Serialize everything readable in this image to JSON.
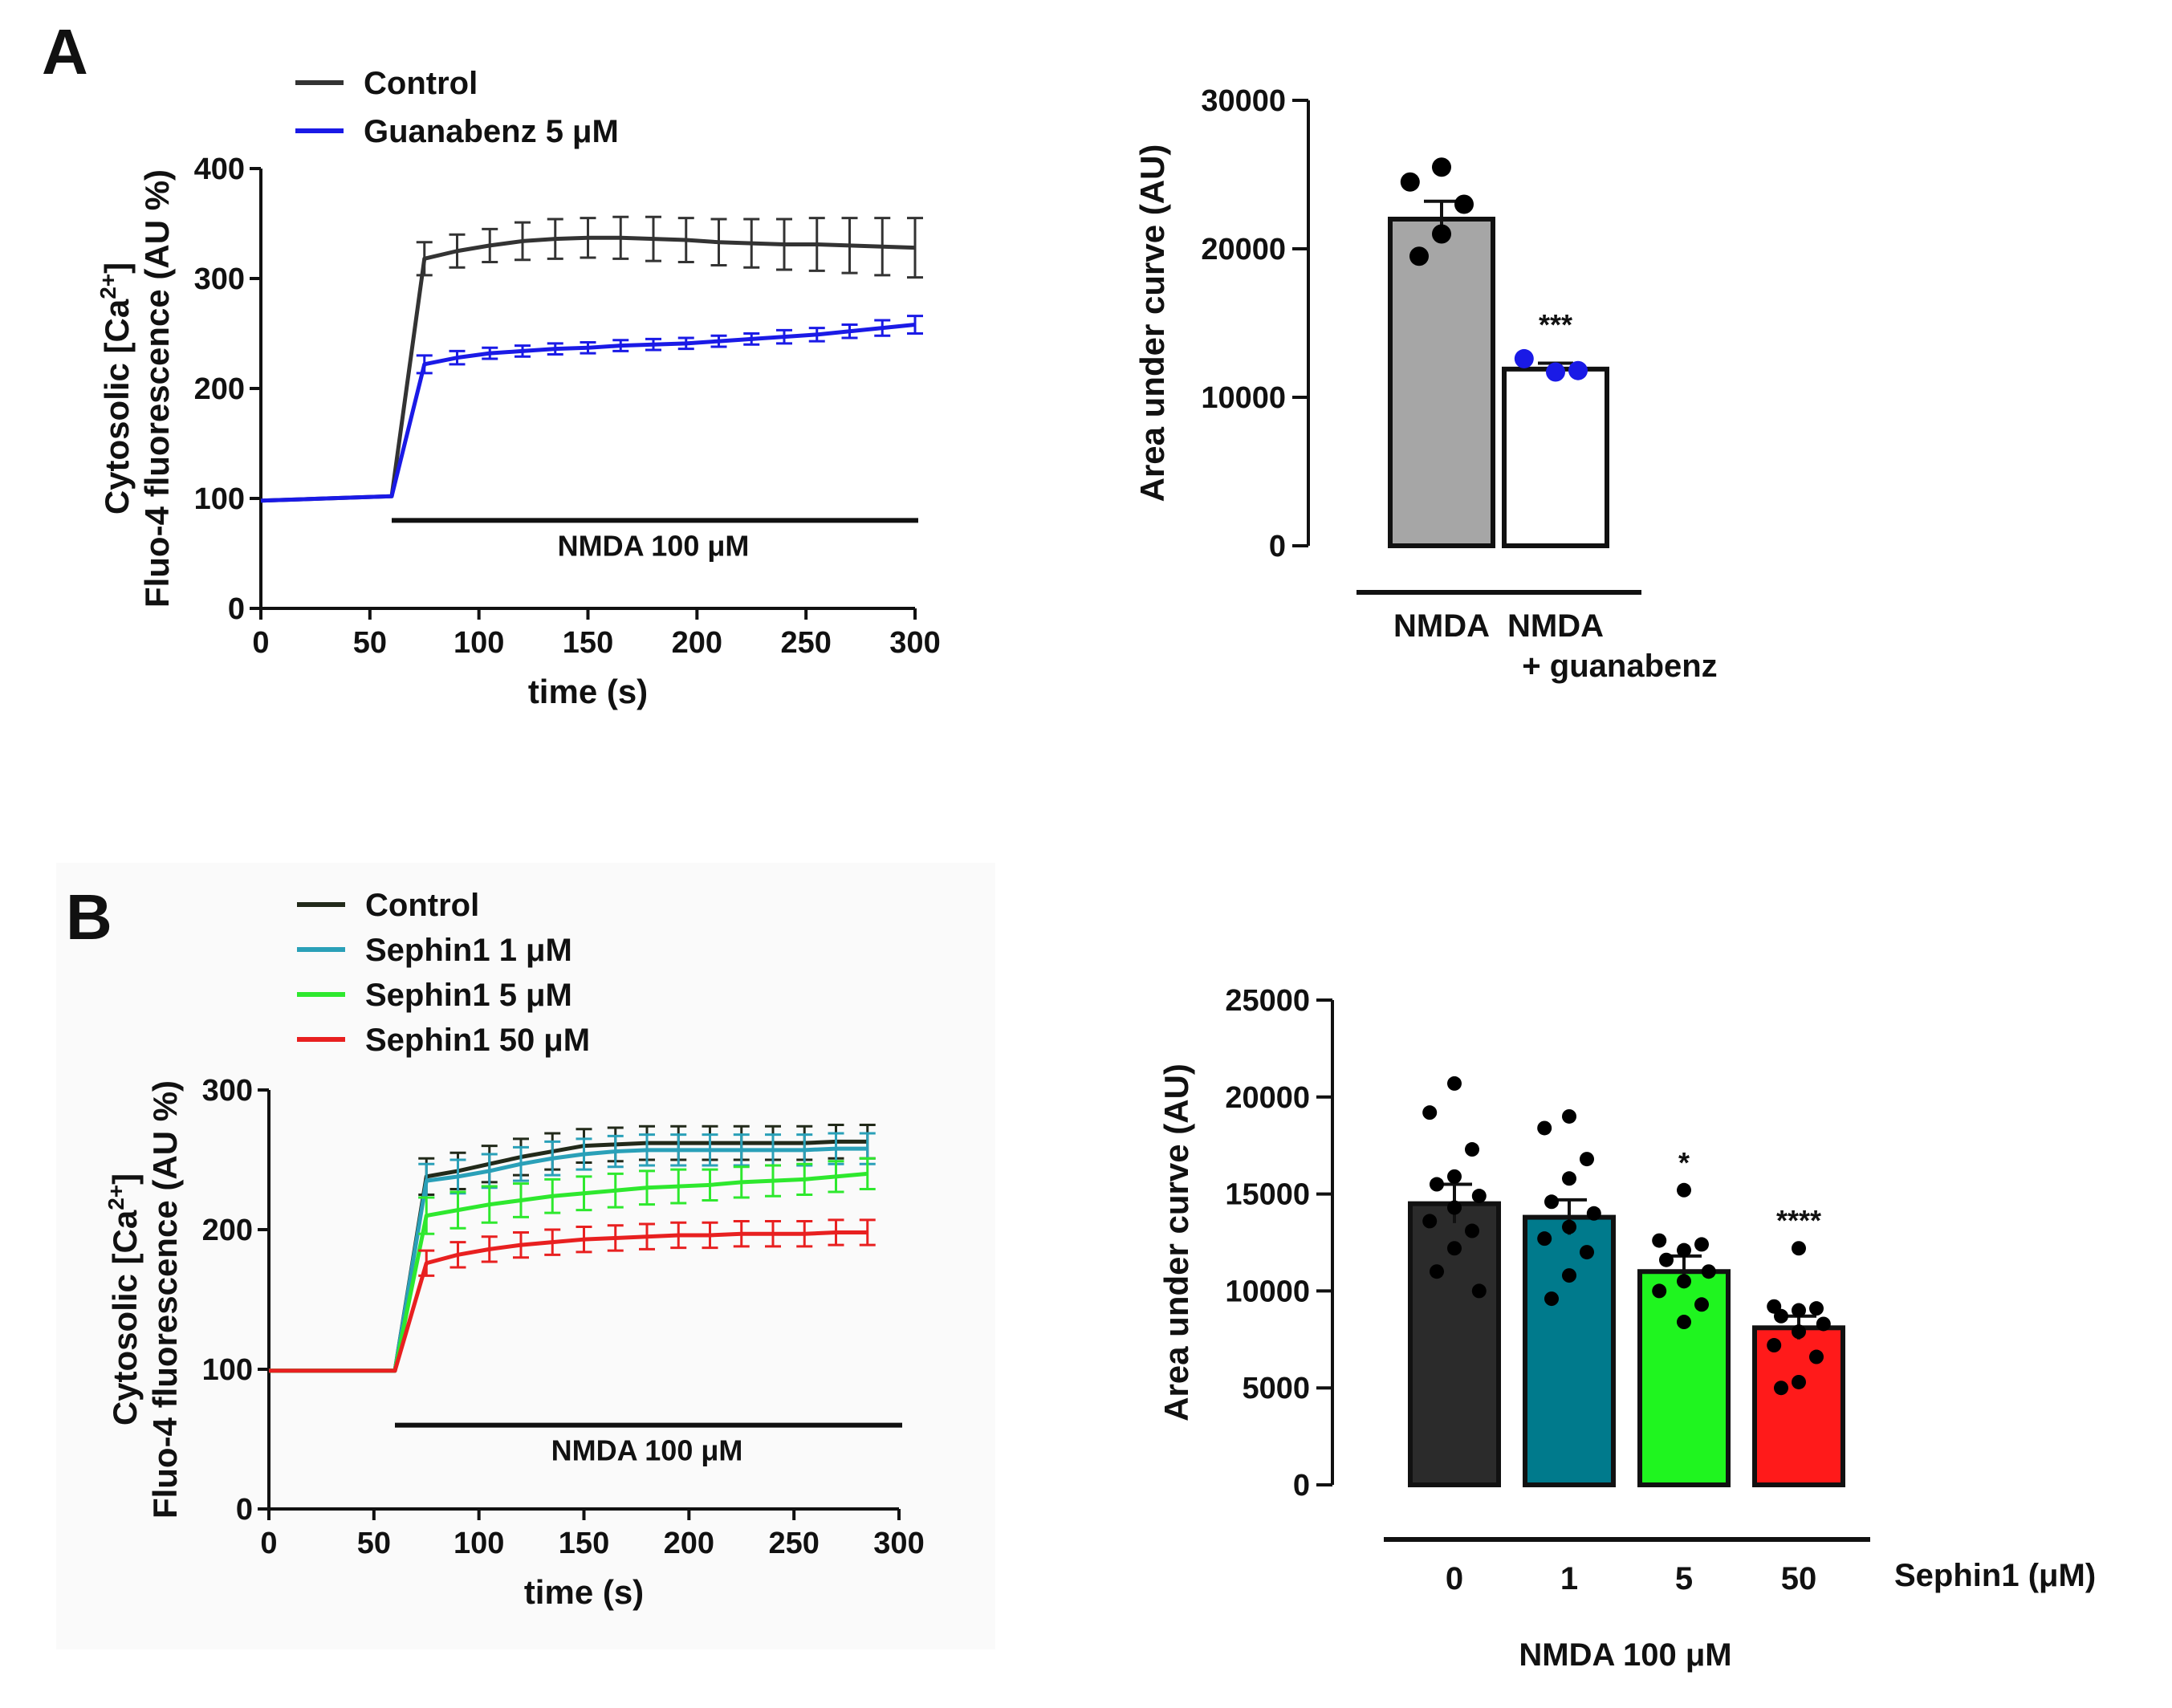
{
  "panel_a": {
    "letter": "A"
  },
  "panel_b": {
    "letter": "B"
  },
  "chart_data": [
    {
      "id": "a-line",
      "type": "line",
      "title": "",
      "xlabel": "time (s)",
      "ylabel": "Cytosolic [Ca2+]",
      "ylabel_line1_main": "Cytosolic [Ca",
      "ylabel_line1_sup": "2+",
      "ylabel_line1_end": "]",
      "ylabel_line2": "Fluo-4 fluorescence (AU %)",
      "xlim": [
        0,
        300
      ],
      "ylim": [
        0,
        400
      ],
      "xticks": [
        "0",
        "50",
        "100",
        "150",
        "200",
        "250",
        "300"
      ],
      "yticks": [
        "0",
        "100",
        "200",
        "300",
        "400"
      ],
      "annotation": "NMDA 100 μM",
      "annotation_x_range": [
        60,
        300
      ],
      "annotation_y": 80,
      "legend_position": "top-left",
      "series": [
        {
          "name": "Control",
          "color": "#333333",
          "x": [
            0,
            30,
            60,
            75,
            90,
            105,
            120,
            135,
            150,
            165,
            180,
            195,
            210,
            225,
            240,
            255,
            270,
            285,
            300
          ],
          "y": [
            98,
            100,
            102,
            318,
            325,
            330,
            334,
            336,
            337,
            337,
            336,
            335,
            333,
            332,
            331,
            331,
            330,
            329,
            328
          ],
          "err": [
            2,
            2,
            2,
            15,
            15,
            15,
            17,
            18,
            18,
            19,
            20,
            20,
            21,
            22,
            23,
            24,
            25,
            26,
            27
          ]
        },
        {
          "name": "Guanabenz 5 μM",
          "color": "#1a1ae6",
          "x": [
            0,
            30,
            60,
            75,
            90,
            105,
            120,
            135,
            150,
            165,
            180,
            195,
            210,
            225,
            240,
            255,
            270,
            285,
            300
          ],
          "y": [
            98,
            100,
            102,
            222,
            228,
            232,
            234,
            236,
            237,
            239,
            240,
            241,
            243,
            245,
            247,
            249,
            252,
            255,
            258
          ],
          "err": [
            2,
            2,
            2,
            8,
            6,
            5,
            5,
            5,
            5,
            5,
            5,
            5,
            5,
            5,
            6,
            6,
            6,
            7,
            8
          ]
        }
      ]
    },
    {
      "id": "a-bar",
      "type": "bar",
      "title": "",
      "ylabel": "Area under curve (AU)",
      "ylim": [
        0,
        30000
      ],
      "yticks": [
        "0",
        "10000",
        "20000",
        "30000"
      ],
      "categories": [
        "NMDA",
        "NMDA\n+ guanabenz"
      ],
      "cat_line1": [
        "NMDA",
        "NMDA"
      ],
      "cat_line2": [
        "",
        "+ guanabenz"
      ],
      "values": [
        22000,
        11900
      ],
      "sem": [
        1200,
        400
      ],
      "colors": [
        "#a6a6a6",
        "#ffffff"
      ],
      "point_colors": [
        "#000000",
        "#1a1ae6"
      ],
      "points": [
        [
          25500,
          24500,
          23000,
          21000,
          19500
        ],
        [
          11700,
          12600,
          11800
        ]
      ],
      "significance": [
        "",
        "***"
      ]
    },
    {
      "id": "b-line",
      "type": "line",
      "title": "",
      "xlabel": "time (s)",
      "ylabel": "Cytosolic [Ca2+]",
      "ylabel_line1_main": "Cytosolic [Ca",
      "ylabel_line1_sup": "2+",
      "ylabel_line1_end": "]",
      "ylabel_line2": "Fluo-4 fluorescence (AU %)",
      "xlim": [
        0,
        300
      ],
      "ylim": [
        0,
        300
      ],
      "xticks": [
        "0",
        "50",
        "100",
        "150",
        "200",
        "250",
        "300"
      ],
      "yticks": [
        "0",
        "100",
        "200",
        "300"
      ],
      "annotation": "NMDA 100 μM",
      "annotation_x_range": [
        60,
        300
      ],
      "annotation_y": 60,
      "legend_position": "top-left",
      "series": [
        {
          "name": "Control",
          "color": "#222a1a",
          "x": [
            0,
            15,
            30,
            45,
            60,
            75,
            90,
            105,
            120,
            135,
            150,
            165,
            180,
            195,
            210,
            225,
            240,
            255,
            270,
            285
          ],
          "y": [
            99,
            99,
            99,
            99,
            99,
            238,
            242,
            247,
            252,
            256,
            260,
            261,
            262,
            262,
            262,
            262,
            262,
            262,
            263,
            263
          ],
          "err": [
            1,
            1,
            1,
            1,
            1,
            13,
            13,
            13,
            13,
            13,
            12,
            12,
            12,
            12,
            12,
            12,
            12,
            12,
            12,
            12
          ]
        },
        {
          "name": "Sephin1 1 μM",
          "color": "#2aa0b8",
          "x": [
            0,
            15,
            30,
            45,
            60,
            75,
            90,
            105,
            120,
            135,
            150,
            165,
            180,
            195,
            210,
            225,
            240,
            255,
            270,
            285
          ],
          "y": [
            99,
            99,
            99,
            99,
            99,
            235,
            238,
            242,
            247,
            251,
            254,
            256,
            257,
            257,
            257,
            257,
            257,
            257,
            258,
            258
          ],
          "err": [
            1,
            1,
            1,
            1,
            1,
            12,
            12,
            12,
            12,
            12,
            11,
            11,
            11,
            11,
            11,
            11,
            11,
            11,
            11,
            11
          ]
        },
        {
          "name": "Sephin1 5 μM",
          "color": "#2ee82e",
          "x": [
            0,
            15,
            30,
            45,
            60,
            75,
            90,
            105,
            120,
            135,
            150,
            165,
            180,
            195,
            210,
            225,
            240,
            255,
            270,
            285
          ],
          "y": [
            99,
            99,
            99,
            99,
            99,
            210,
            214,
            218,
            221,
            224,
            226,
            228,
            230,
            231,
            232,
            234,
            235,
            236,
            238,
            240
          ],
          "err": [
            1,
            1,
            1,
            1,
            1,
            13,
            13,
            13,
            12,
            12,
            12,
            12,
            12,
            12,
            11,
            11,
            11,
            11,
            11,
            11
          ]
        },
        {
          "name": "Sephin1 50 μM",
          "color": "#e82020",
          "x": [
            0,
            15,
            30,
            45,
            60,
            75,
            90,
            105,
            120,
            135,
            150,
            165,
            180,
            195,
            210,
            225,
            240,
            255,
            270,
            285
          ],
          "y": [
            99,
            99,
            99,
            99,
            99,
            176,
            182,
            186,
            189,
            191,
            193,
            194,
            195,
            196,
            196,
            197,
            197,
            197,
            198,
            198
          ],
          "err": [
            1,
            1,
            1,
            1,
            1,
            9,
            9,
            9,
            9,
            9,
            9,
            9,
            9,
            9,
            9,
            9,
            9,
            9,
            9,
            9
          ]
        }
      ]
    },
    {
      "id": "b-bar",
      "type": "bar",
      "title": "",
      "ylabel": "Area under curve (AU)",
      "ylim": [
        0,
        25000
      ],
      "yticks": [
        "0",
        "5000",
        "10000",
        "15000",
        "20000",
        "25000"
      ],
      "categories": [
        "0",
        "1",
        "5",
        "50"
      ],
      "values": [
        14500,
        13800,
        11000,
        8100
      ],
      "sem": [
        1000,
        900,
        800,
        600
      ],
      "colors": [
        "#2b2b2b",
        "#007a8c",
        "#1ff51f",
        "#ff1a1a"
      ],
      "point_colors": [
        "#000000",
        "#000000",
        "#000000",
        "#000000"
      ],
      "points": [
        [
          20700,
          19200,
          17300,
          15900,
          15500,
          14900,
          14300,
          13600,
          13100,
          12200,
          11000,
          10000
        ],
        [
          19000,
          18400,
          16800,
          15800,
          14600,
          14000,
          13300,
          12700,
          12000,
          10800,
          9600
        ],
        [
          15200,
          12600,
          12400,
          12100,
          11600,
          11000,
          10500,
          10000,
          9300,
          8400
        ],
        [
          12200,
          9200,
          9100,
          9000,
          8700,
          8300,
          7900,
          7200,
          6600,
          5300,
          5000
        ]
      ],
      "significance": [
        "",
        "",
        "*",
        "****"
      ],
      "group_label": "Sephin1 (μM)",
      "footer_label": "NMDA 100 μM"
    }
  ]
}
